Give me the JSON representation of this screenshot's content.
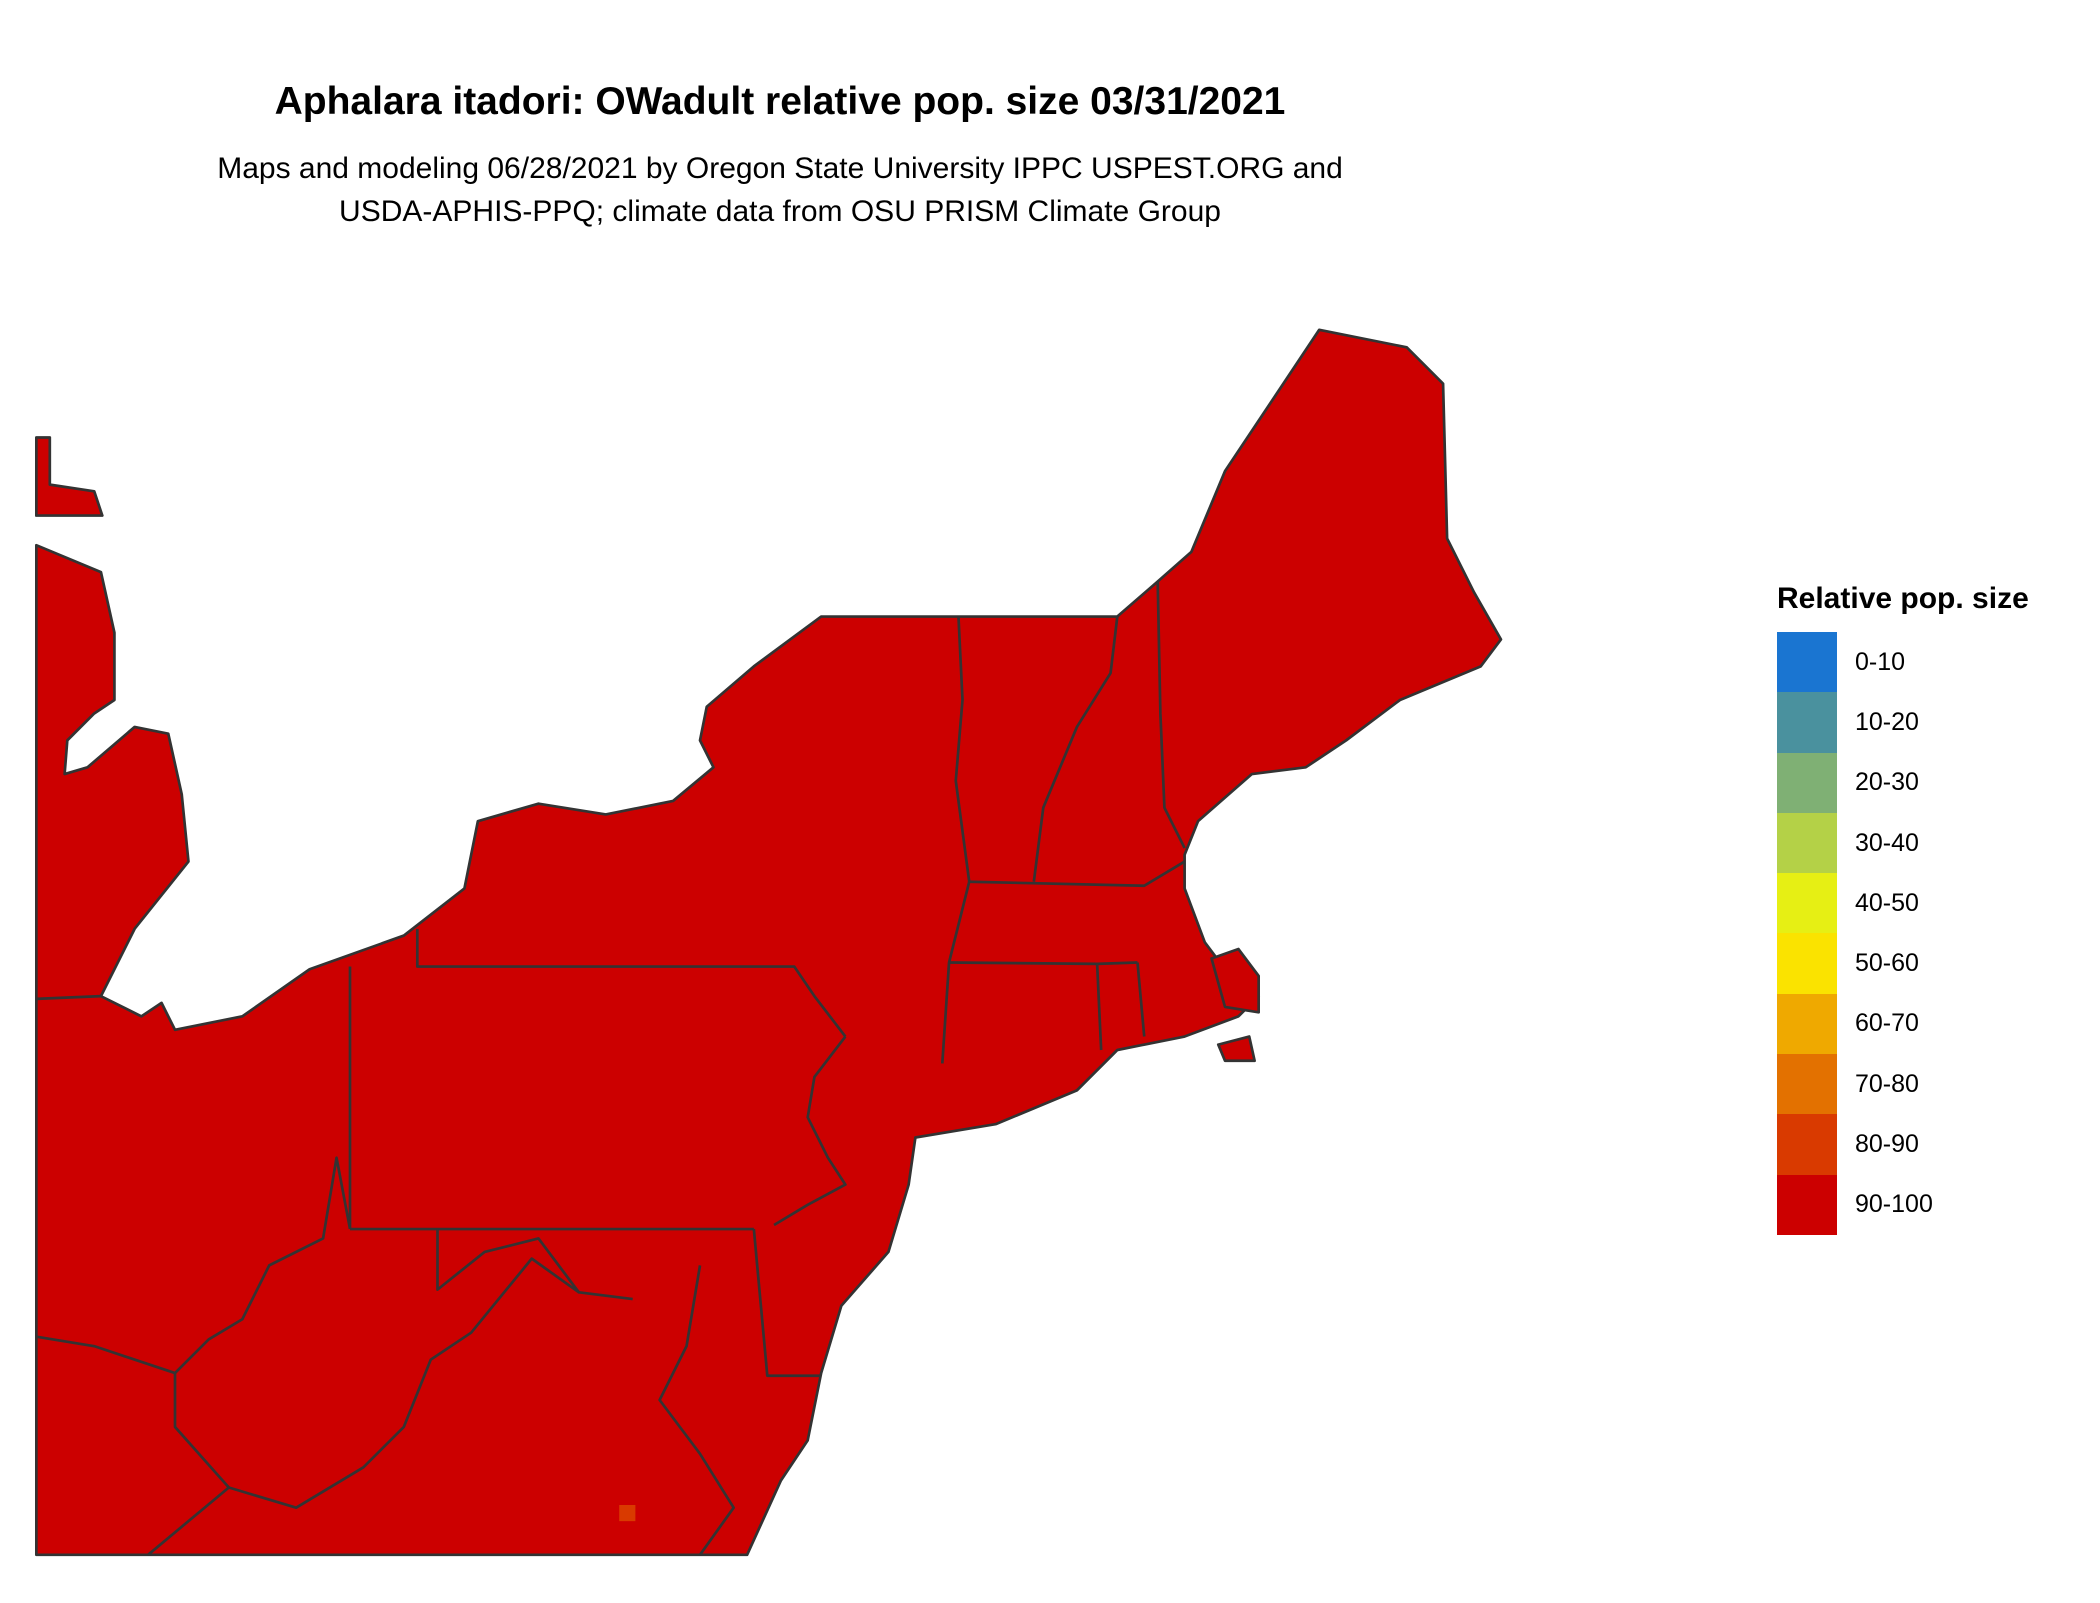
{
  "title": "Aphalara itadori: OWadult relative pop. size 03/31/2021",
  "subtitle_lines": [
    "Maps and modeling 06/28/2021 by Oregon State University IPPC USPEST.ORG and",
    "USDA-APHIS-PPQ; climate data from OSU PRISM Climate Group"
  ],
  "map": {
    "region": "Northeastern United States",
    "fill_color": "#cc0000",
    "border_color": "#333333",
    "minor_patch_color": "#d93a00"
  },
  "legend": {
    "title": "Relative pop. size",
    "items": [
      {
        "label": "0-10",
        "color": "#1a75d1"
      },
      {
        "label": "10-20",
        "color": "#4a919e"
      },
      {
        "label": "20-30",
        "color": "#7fb074"
      },
      {
        "label": "30-40",
        "color": "#b4d147"
      },
      {
        "label": "40-50",
        "color": "#e6ef14"
      },
      {
        "label": "50-60",
        "color": "#fae300"
      },
      {
        "label": "60-70",
        "color": "#efa900"
      },
      {
        "label": "70-80",
        "color": "#e37100"
      },
      {
        "label": "80-90",
        "color": "#d93a00"
      },
      {
        "label": "90-100",
        "color": "#cc0000"
      }
    ]
  }
}
